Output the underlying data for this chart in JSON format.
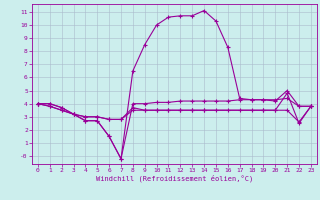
{
  "xlabel": "Windchill (Refroidissement éolien,°C)",
  "background_color": "#cceeed",
  "grid_color": "#aabbcc",
  "line_color": "#990099",
  "xlim": [
    -0.5,
    23.5
  ],
  "ylim": [
    -0.6,
    11.6
  ],
  "yticks": [
    0,
    1,
    2,
    3,
    4,
    5,
    6,
    7,
    8,
    9,
    10,
    11
  ],
  "xticks": [
    0,
    1,
    2,
    3,
    4,
    5,
    6,
    7,
    8,
    9,
    10,
    11,
    12,
    13,
    14,
    15,
    16,
    17,
    18,
    19,
    20,
    21,
    22,
    23
  ],
  "line1_x": [
    0,
    1,
    2,
    3,
    4,
    5,
    6,
    7,
    8,
    9,
    10,
    11,
    12,
    13,
    14,
    15,
    16,
    17,
    18,
    19,
    20,
    21,
    22,
    23
  ],
  "line1_y": [
    4.0,
    4.0,
    3.7,
    3.2,
    2.7,
    2.7,
    1.5,
    -0.2,
    6.5,
    8.5,
    10.0,
    10.6,
    10.7,
    10.7,
    11.1,
    10.3,
    8.3,
    4.4,
    4.3,
    4.3,
    4.2,
    5.0,
    3.8,
    3.8
  ],
  "line2_x": [
    0,
    1,
    2,
    3,
    4,
    5,
    6,
    7,
    8,
    9,
    10,
    11,
    12,
    13,
    14,
    15,
    16,
    17,
    18,
    19,
    20,
    21,
    22,
    23
  ],
  "line2_y": [
    4.0,
    4.0,
    3.7,
    3.2,
    2.7,
    2.7,
    1.5,
    -0.2,
    4.0,
    4.0,
    4.1,
    4.1,
    4.2,
    4.2,
    4.2,
    4.2,
    4.2,
    4.3,
    4.3,
    4.3,
    4.3,
    4.4,
    3.8,
    3.8
  ],
  "line3_x": [
    0,
    1,
    2,
    3,
    4,
    5,
    6,
    7,
    8,
    9,
    10,
    11,
    12,
    13,
    14,
    15,
    16,
    17,
    18,
    19,
    20,
    21,
    22,
    23
  ],
  "line3_y": [
    4.0,
    3.8,
    3.5,
    3.2,
    3.0,
    3.0,
    2.8,
    2.8,
    3.7,
    3.5,
    3.5,
    3.5,
    3.5,
    3.5,
    3.5,
    3.5,
    3.5,
    3.5,
    3.5,
    3.5,
    3.5,
    3.5,
    2.6,
    3.8
  ],
  "line4_x": [
    0,
    1,
    2,
    3,
    4,
    5,
    6,
    7,
    8,
    9,
    10,
    11,
    12,
    13,
    14,
    19,
    20,
    21,
    22,
    23
  ],
  "line4_y": [
    4.0,
    3.8,
    3.5,
    3.2,
    3.0,
    3.0,
    2.8,
    2.8,
    3.5,
    3.5,
    3.5,
    3.5,
    3.5,
    3.5,
    3.5,
    3.5,
    3.5,
    4.8,
    2.5,
    3.8
  ]
}
